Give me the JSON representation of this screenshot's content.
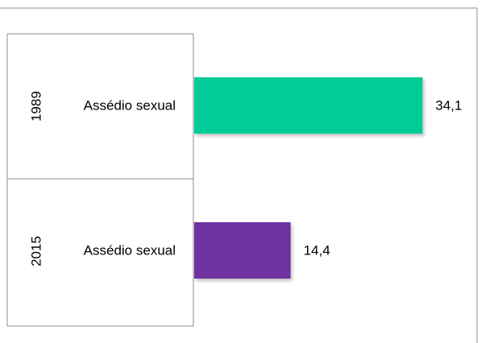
{
  "chart_data": {
    "type": "bar",
    "orientation": "horizontal",
    "groups": [
      {
        "year": "1989",
        "category": "Assédio sexual",
        "value": 34.1,
        "value_label": "34,1",
        "color": "#00CC99"
      },
      {
        "year": "2015",
        "category": "Assédio sexual",
        "value": 14.4,
        "value_label": "14,4",
        "color": "#7030A0"
      }
    ],
    "xlim": [
      0,
      42
    ],
    "legend": "none",
    "grid": false
  }
}
